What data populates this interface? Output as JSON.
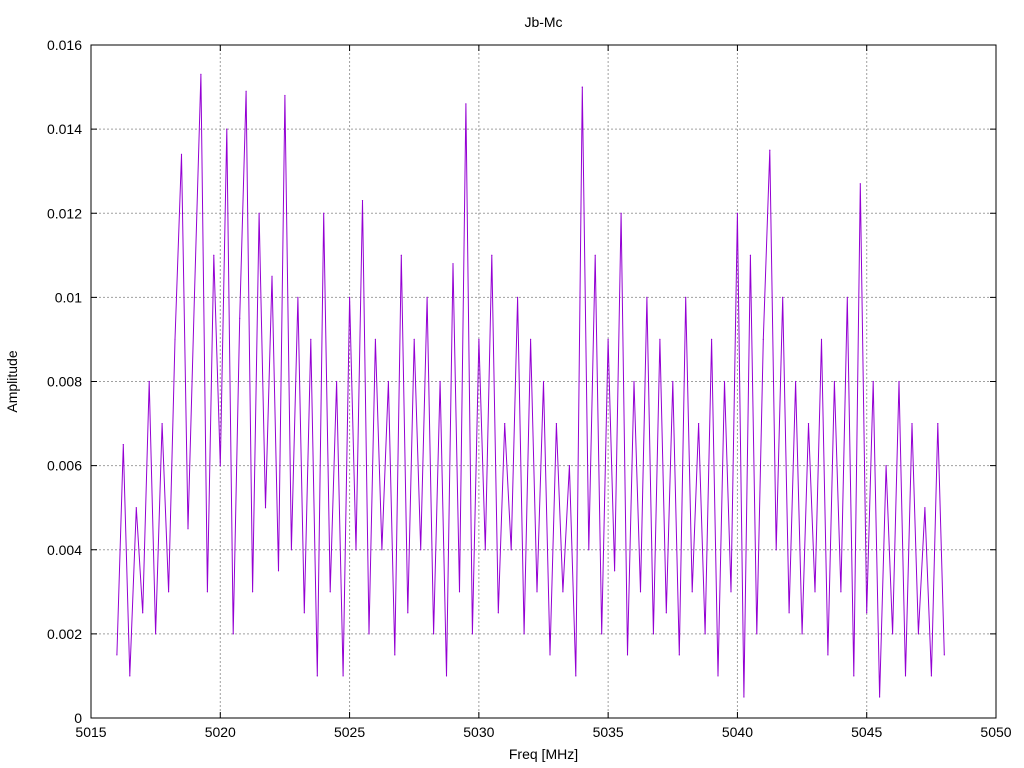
{
  "chart_data": {
    "type": "line",
    "title": "Jb-Mc",
    "xlabel": "Freq [MHz]",
    "ylabel": "Amplitude",
    "xlim": [
      5015,
      5050
    ],
    "ylim": [
      0,
      0.016
    ],
    "x_ticks": [
      "5015",
      "5020",
      "5025",
      "5030",
      "5035",
      "5040",
      "5045",
      "5050"
    ],
    "y_ticks": [
      "0",
      "0.002",
      "0.004",
      "0.006",
      "0.008",
      "0.01",
      "0.012",
      "0.014",
      "0.016"
    ],
    "grid": true,
    "line_color": "#9400d3",
    "series": [
      {
        "x": [
          5016.0,
          5016.25,
          5016.5,
          5016.75,
          5017.0,
          5017.25,
          5017.5,
          5017.75,
          5018.0,
          5018.25,
          5018.5,
          5018.75,
          5019.0,
          5019.25,
          5019.5,
          5019.75,
          5020.0,
          5020.25,
          5020.5,
          5020.75,
          5021.0,
          5021.25,
          5021.5,
          5021.75,
          5022.0,
          5022.25,
          5022.5,
          5022.75,
          5023.0,
          5023.25,
          5023.5,
          5023.75,
          5024.0,
          5024.25,
          5024.5,
          5024.75,
          5025.0,
          5025.25,
          5025.5,
          5025.75,
          5026.0,
          5026.25,
          5026.5,
          5026.75,
          5027.0,
          5027.25,
          5027.5,
          5027.75,
          5028.0,
          5028.25,
          5028.5,
          5028.75,
          5029.0,
          5029.25,
          5029.5,
          5029.75,
          5030.0,
          5030.25,
          5030.5,
          5030.75,
          5031.0,
          5031.25,
          5031.5,
          5031.75,
          5032.0,
          5032.25,
          5032.5,
          5032.75,
          5033.0,
          5033.25,
          5033.5,
          5033.75,
          5034.0,
          5034.25,
          5034.5,
          5034.75,
          5035.0,
          5035.25,
          5035.5,
          5035.75,
          5036.0,
          5036.25,
          5036.5,
          5036.75,
          5037.0,
          5037.25,
          5037.5,
          5037.75,
          5038.0,
          5038.25,
          5038.5,
          5038.75,
          5039.0,
          5039.25,
          5039.5,
          5039.75,
          5040.0,
          5040.25,
          5040.5,
          5040.75,
          5041.0,
          5041.25,
          5041.5,
          5041.75,
          5042.0,
          5042.25,
          5042.5,
          5042.75,
          5043.0,
          5043.25,
          5043.5,
          5043.75,
          5044.0,
          5044.25,
          5044.5,
          5044.75,
          5045.0,
          5045.25,
          5045.5,
          5045.75,
          5046.0,
          5046.25,
          5046.5,
          5046.75,
          5047.0,
          5047.25,
          5047.5,
          5047.75,
          5048.0
        ],
        "y": [
          0.0015,
          0.0065,
          0.001,
          0.005,
          0.0025,
          0.008,
          0.002,
          0.007,
          0.003,
          0.009,
          0.0134,
          0.0045,
          0.01,
          0.0153,
          0.003,
          0.011,
          0.006,
          0.014,
          0.002,
          0.0095,
          0.0149,
          0.003,
          0.012,
          0.005,
          0.0105,
          0.0035,
          0.0148,
          0.004,
          0.01,
          0.0025,
          0.009,
          0.001,
          0.012,
          0.003,
          0.008,
          0.001,
          0.01,
          0.004,
          0.0123,
          0.002,
          0.009,
          0.004,
          0.008,
          0.0015,
          0.011,
          0.0025,
          0.009,
          0.004,
          0.01,
          0.002,
          0.008,
          0.001,
          0.0108,
          0.003,
          0.0146,
          0.002,
          0.009,
          0.004,
          0.011,
          0.0025,
          0.007,
          0.004,
          0.01,
          0.002,
          0.009,
          0.003,
          0.008,
          0.0015,
          0.007,
          0.003,
          0.006,
          0.001,
          0.015,
          0.004,
          0.011,
          0.002,
          0.009,
          0.0035,
          0.012,
          0.0015,
          0.008,
          0.003,
          0.01,
          0.002,
          0.009,
          0.0025,
          0.008,
          0.0015,
          0.01,
          0.003,
          0.007,
          0.002,
          0.009,
          0.001,
          0.008,
          0.003,
          0.012,
          0.0005,
          0.011,
          0.002,
          0.009,
          0.0135,
          0.004,
          0.01,
          0.0025,
          0.008,
          0.002,
          0.007,
          0.003,
          0.009,
          0.0015,
          0.008,
          0.003,
          0.01,
          0.001,
          0.0127,
          0.0025,
          0.008,
          0.0005,
          0.006,
          0.002,
          0.008,
          0.001,
          0.007,
          0.002,
          0.005,
          0.001,
          0.007,
          0.0015
        ]
      }
    ]
  }
}
